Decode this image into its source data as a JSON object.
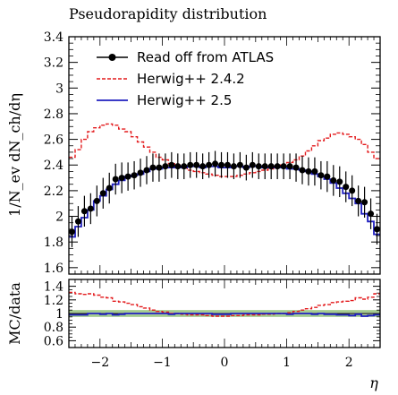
{
  "chart_data": {
    "type": "line",
    "title": "Pseudorapidity distribution",
    "xlabel": "η",
    "ylabel": "1/N_ev dN_ch/dη",
    "ratio_ylabel": "MC/data",
    "xlim": [
      -2.5,
      2.5
    ],
    "ylim": [
      1.55,
      3.4
    ],
    "ratio_ylim": [
      0.5,
      1.5
    ],
    "x_ticks": [
      -2,
      -1,
      0,
      1,
      2
    ],
    "x_tick_labels": [
      "−2",
      "−1",
      "0",
      "1",
      "2"
    ],
    "y_ticks": [
      1.6,
      1.8,
      2,
      2.2,
      2.4,
      2.6,
      2.8,
      3,
      3.2,
      3.4
    ],
    "y_tick_labels": [
      "1.6",
      "1.8",
      "2",
      "2.2",
      "2.4",
      "2.6",
      "2.8",
      "3",
      "3.2",
      "3.4"
    ],
    "ratio_y_ticks": [
      0.6,
      0.8,
      1,
      1.2,
      1.4
    ],
    "ratio_y_tick_labels": [
      "0.6",
      "0.8",
      "1",
      "1.2",
      "1.4"
    ],
    "legend_position": "top-left",
    "series": [
      {
        "name": "Read off from ATLAS",
        "style": "points",
        "color": "#000000",
        "x": [
          -2.45,
          -2.35,
          -2.25,
          -2.15,
          -2.05,
          -1.95,
          -1.85,
          -1.75,
          -1.65,
          -1.55,
          -1.45,
          -1.35,
          -1.25,
          -1.15,
          -1.05,
          -0.95,
          -0.85,
          -0.75,
          -0.65,
          -0.55,
          -0.45,
          -0.35,
          -0.25,
          -0.15,
          -0.05,
          0.05,
          0.15,
          0.25,
          0.35,
          0.45,
          0.55,
          0.65,
          0.75,
          0.85,
          0.95,
          1.05,
          1.15,
          1.25,
          1.35,
          1.45,
          1.55,
          1.65,
          1.75,
          1.85,
          1.95,
          2.05,
          2.15,
          2.25,
          2.35,
          2.45
        ],
        "y": [
          1.88,
          1.96,
          2.04,
          2.06,
          2.12,
          2.18,
          2.22,
          2.29,
          2.3,
          2.31,
          2.32,
          2.34,
          2.36,
          2.38,
          2.38,
          2.39,
          2.4,
          2.39,
          2.39,
          2.4,
          2.4,
          2.39,
          2.4,
          2.41,
          2.4,
          2.4,
          2.39,
          2.4,
          2.38,
          2.4,
          2.39,
          2.39,
          2.39,
          2.39,
          2.39,
          2.39,
          2.38,
          2.36,
          2.35,
          2.35,
          2.32,
          2.31,
          2.28,
          2.27,
          2.23,
          2.2,
          2.12,
          2.11,
          2.02,
          1.9
        ],
        "yerr": [
          0.12,
          0.12,
          0.12,
          0.12,
          0.12,
          0.12,
          0.12,
          0.12,
          0.12,
          0.11,
          0.11,
          0.11,
          0.11,
          0.11,
          0.11,
          0.1,
          0.1,
          0.1,
          0.1,
          0.1,
          0.1,
          0.1,
          0.1,
          0.1,
          0.1,
          0.1,
          0.1,
          0.1,
          0.1,
          0.1,
          0.1,
          0.1,
          0.1,
          0.1,
          0.1,
          0.1,
          0.11,
          0.11,
          0.11,
          0.11,
          0.11,
          0.12,
          0.12,
          0.12,
          0.12,
          0.12,
          0.12,
          0.12,
          0.12,
          0.12
        ]
      },
      {
        "name": "Herwig++ 2.4.2",
        "style": "dashed-step",
        "color": "#e31a1c",
        "x": [
          -2.45,
          -2.35,
          -2.25,
          -2.15,
          -2.05,
          -1.95,
          -1.85,
          -1.75,
          -1.65,
          -1.55,
          -1.45,
          -1.35,
          -1.25,
          -1.15,
          -1.05,
          -0.95,
          -0.85,
          -0.75,
          -0.65,
          -0.55,
          -0.45,
          -0.35,
          -0.25,
          -0.15,
          -0.05,
          0.05,
          0.15,
          0.25,
          0.35,
          0.45,
          0.55,
          0.65,
          0.75,
          0.85,
          0.95,
          1.05,
          1.15,
          1.25,
          1.35,
          1.45,
          1.55,
          1.65,
          1.75,
          1.85,
          1.95,
          2.05,
          2.15,
          2.25,
          2.35,
          2.45
        ],
        "y": [
          2.46,
          2.52,
          2.6,
          2.66,
          2.69,
          2.71,
          2.72,
          2.71,
          2.68,
          2.66,
          2.62,
          2.58,
          2.54,
          2.5,
          2.46,
          2.44,
          2.41,
          2.4,
          2.38,
          2.36,
          2.35,
          2.34,
          2.33,
          2.32,
          2.31,
          2.31,
          2.31,
          2.32,
          2.33,
          2.34,
          2.35,
          2.36,
          2.37,
          2.39,
          2.4,
          2.42,
          2.44,
          2.47,
          2.51,
          2.55,
          2.59,
          2.61,
          2.64,
          2.65,
          2.64,
          2.62,
          2.6,
          2.56,
          2.5,
          2.45
        ],
        "ratio": [
          1.31,
          1.29,
          1.28,
          1.29,
          1.27,
          1.24,
          1.23,
          1.18,
          1.17,
          1.15,
          1.13,
          1.1,
          1.08,
          1.05,
          1.03,
          1.02,
          1.0,
          1.0,
          0.99,
          0.98,
          0.98,
          0.98,
          0.97,
          0.96,
          0.96,
          0.96,
          0.97,
          0.97,
          0.98,
          0.98,
          0.98,
          0.99,
          0.99,
          1.0,
          1.0,
          1.01,
          1.03,
          1.05,
          1.07,
          1.09,
          1.12,
          1.13,
          1.16,
          1.17,
          1.18,
          1.19,
          1.23,
          1.21,
          1.24,
          1.29
        ]
      },
      {
        "name": "Herwig++ 2.5",
        "style": "solid-step",
        "color": "#1f1fbf",
        "x": [
          -2.45,
          -2.35,
          -2.25,
          -2.15,
          -2.05,
          -1.95,
          -1.85,
          -1.75,
          -1.65,
          -1.55,
          -1.45,
          -1.35,
          -1.25,
          -1.15,
          -1.05,
          -0.95,
          -0.85,
          -0.75,
          -0.65,
          -0.55,
          -0.45,
          -0.35,
          -0.25,
          -0.15,
          -0.05,
          0.05,
          0.15,
          0.25,
          0.35,
          0.45,
          0.55,
          0.65,
          0.75,
          0.85,
          0.95,
          1.05,
          1.15,
          1.25,
          1.35,
          1.45,
          1.55,
          1.65,
          1.75,
          1.85,
          1.95,
          2.05,
          2.15,
          2.25,
          2.35,
          2.45
        ],
        "y": [
          1.84,
          1.92,
          1.99,
          2.05,
          2.12,
          2.16,
          2.21,
          2.25,
          2.28,
          2.31,
          2.32,
          2.33,
          2.35,
          2.37,
          2.37,
          2.38,
          2.38,
          2.39,
          2.38,
          2.39,
          2.39,
          2.38,
          2.39,
          2.39,
          2.38,
          2.38,
          2.39,
          2.39,
          2.38,
          2.39,
          2.39,
          2.38,
          2.38,
          2.38,
          2.38,
          2.37,
          2.37,
          2.36,
          2.35,
          2.33,
          2.31,
          2.29,
          2.26,
          2.22,
          2.18,
          2.14,
          2.1,
          2.02,
          1.96,
          1.86
        ],
        "ratio": [
          0.98,
          0.98,
          0.98,
          1.0,
          1.0,
          0.99,
          1.0,
          0.98,
          0.99,
          1.0,
          1.0,
          1.0,
          1.0,
          1.0,
          1.0,
          1.0,
          0.99,
          1.0,
          1.0,
          1.0,
          1.0,
          1.0,
          1.0,
          0.99,
          0.99,
          0.99,
          1.0,
          1.0,
          1.0,
          1.0,
          1.0,
          1.0,
          1.0,
          1.0,
          1.0,
          0.99,
          1.0,
          1.0,
          1.0,
          0.99,
          1.0,
          0.99,
          0.99,
          0.98,
          0.98,
          0.97,
          0.99,
          0.96,
          0.97,
          0.98
        ]
      }
    ],
    "ratio_band": {
      "color": "#9fc98a",
      "inner_color": "#c7e0b7",
      "lower": 0.95,
      "upper": 1.05
    }
  }
}
